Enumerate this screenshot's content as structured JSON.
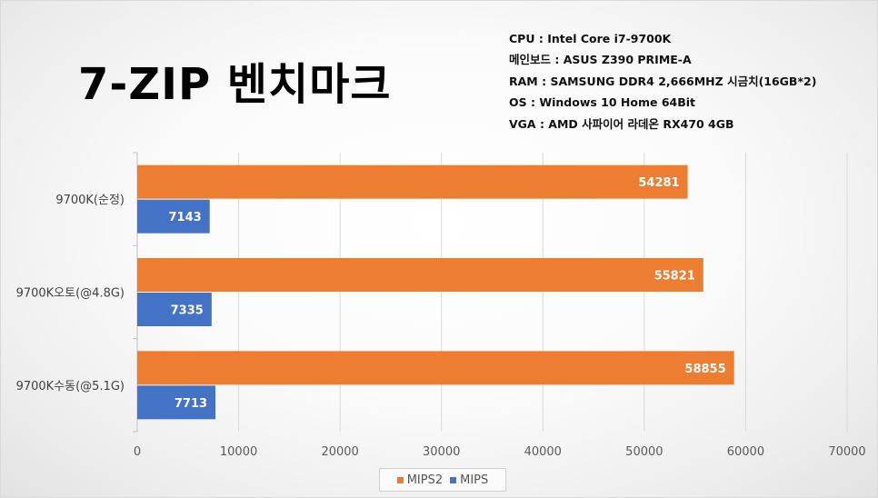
{
  "header": {
    "title": "7-ZIP 벤치마크",
    "specs": [
      "CPU : Intel Core i7-9700K",
      "메인보드 : ASUS Z390 PRIME-A",
      "RAM : SAMSUNG DDR4 2,666MHZ 시금치(16GB*2)",
      "OS : Windows 10 Home 64Bit",
      "VGA : AMD 사파이어 라데온 RX470 4GB"
    ]
  },
  "chart_data": {
    "type": "bar",
    "orientation": "horizontal",
    "categories": [
      "9700K(순정)",
      "9700K오토(@4.8G)",
      "9700K수동(@5.1G)"
    ],
    "series": [
      {
        "name": "MIPS2",
        "values": [
          54281,
          55821,
          58855
        ],
        "color": "#ED7D31"
      },
      {
        "name": "MIPS",
        "values": [
          7143,
          7335,
          7713
        ],
        "color": "#4472C4"
      }
    ],
    "xlim": [
      0,
      70000
    ],
    "xticks": [
      0,
      10000,
      20000,
      30000,
      40000,
      50000,
      60000,
      70000
    ],
    "xtick_labels": [
      "0",
      "10000",
      "20000",
      "30000",
      "40000",
      "50000",
      "60000",
      "70000"
    ],
    "grid": true,
    "data_labels": true,
    "legend_position": "bottom"
  }
}
